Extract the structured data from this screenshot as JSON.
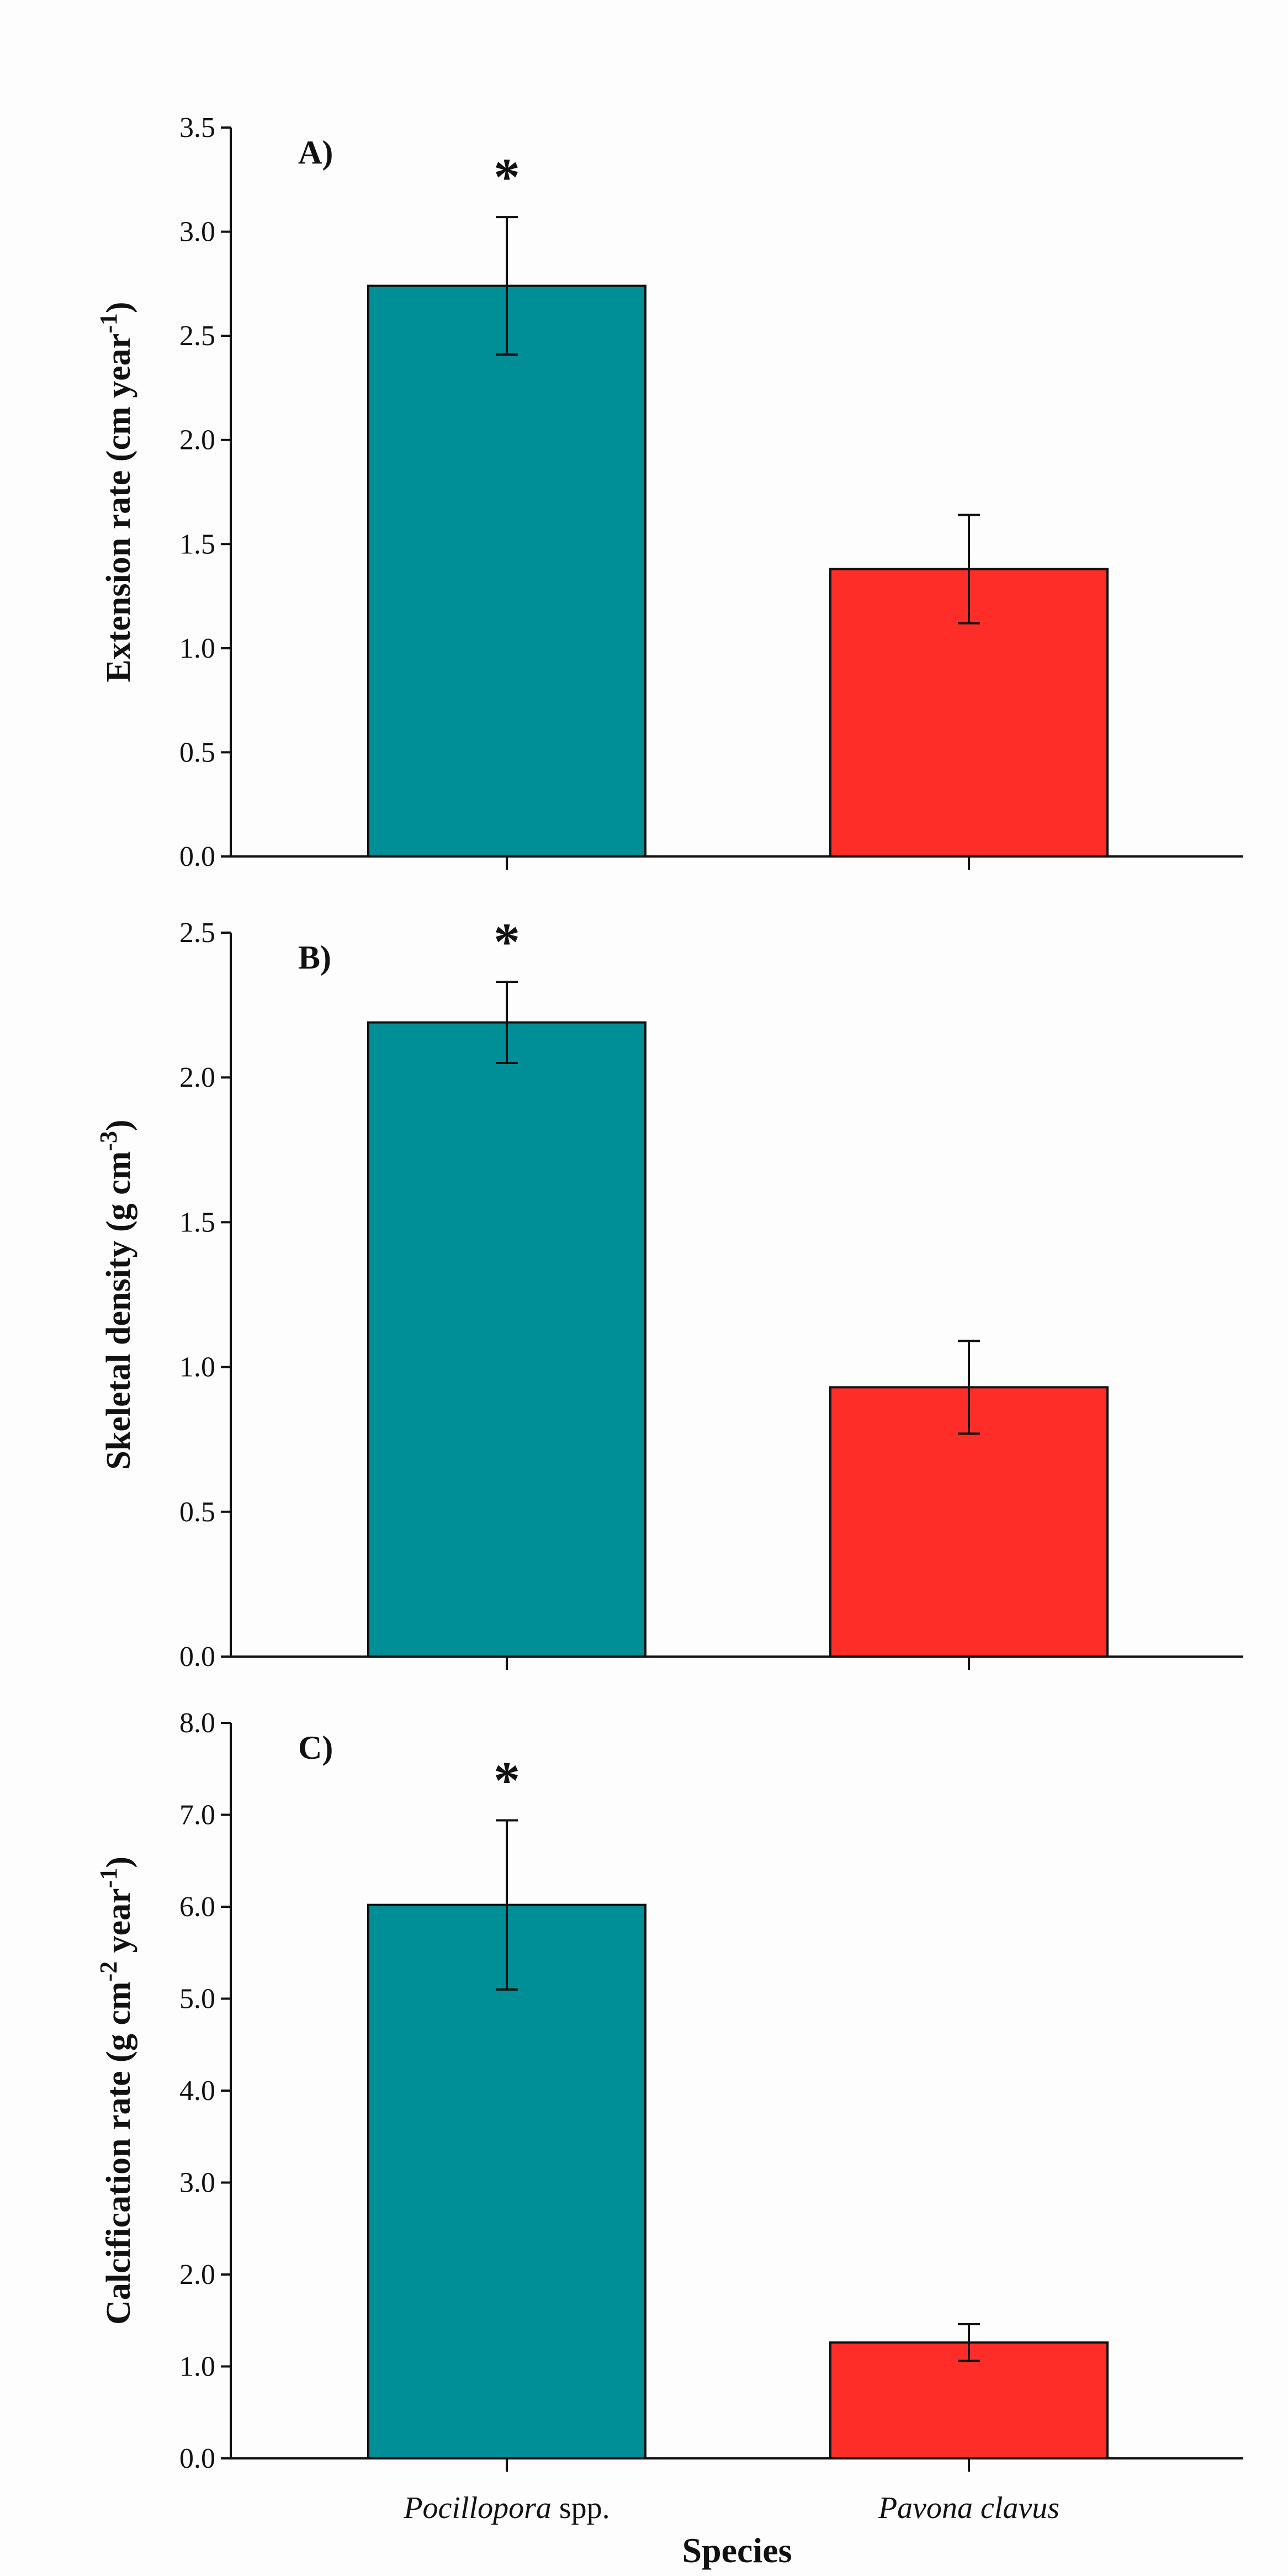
{
  "chart_data": [
    {
      "type": "bar",
      "panel_label": "A)",
      "ylabel_parts": [
        {
          "t": "Extension rate (cm year"
        },
        {
          "t": "-1",
          "sup": true
        },
        {
          "t": ")"
        }
      ],
      "ylim": [
        0,
        3.5
      ],
      "yticks": [
        "0.0",
        "0.5",
        "1.0",
        "1.5",
        "2.0",
        "2.5",
        "3.0",
        "3.5"
      ],
      "categories": [
        "Pocillopora spp.",
        "Pavona clavus"
      ],
      "values": [
        2.74,
        1.38
      ],
      "errors": [
        0.33,
        0.26
      ],
      "significance": [
        "*",
        ""
      ],
      "colors": [
        "#008f96",
        "#ff2d28"
      ]
    },
    {
      "type": "bar",
      "panel_label": "B)",
      "ylabel_parts": [
        {
          "t": "Skeletal density (g cm"
        },
        {
          "t": "-3",
          "sup": true
        },
        {
          "t": ")"
        }
      ],
      "ylim": [
        0,
        2.5
      ],
      "yticks": [
        "0.0",
        "0.5",
        "1.0",
        "1.5",
        "2.0",
        "2.5"
      ],
      "categories": [
        "Pocillopora spp.",
        "Pavona clavus"
      ],
      "values": [
        2.19,
        0.93
      ],
      "errors": [
        0.14,
        0.16
      ],
      "significance": [
        "*",
        ""
      ],
      "colors": [
        "#008f96",
        "#ff2d28"
      ]
    },
    {
      "type": "bar",
      "panel_label": "C)",
      "ylabel_parts": [
        {
          "t": "Calcification rate (g cm"
        },
        {
          "t": "-2",
          "sup": true
        },
        {
          "t": " year"
        },
        {
          "t": "-1",
          "sup": true
        },
        {
          "t": ")"
        }
      ],
      "ylim": [
        0,
        8.0
      ],
      "yticks": [
        "0.0",
        "1.0",
        "2.0",
        "3.0",
        "4.0",
        "5.0",
        "6.0",
        "7.0",
        "8.0"
      ],
      "categories": [
        "Pocillopora spp.",
        "Pavona clavus"
      ],
      "values": [
        6.02,
        1.26
      ],
      "errors": [
        0.92,
        0.2
      ],
      "significance": [
        "*",
        ""
      ],
      "colors": [
        "#008f96",
        "#ff2d28"
      ]
    }
  ],
  "x_tick_labels": [
    {
      "italic": "Pocillopora",
      "plain": " spp."
    },
    {
      "italic": "Pavona clavus",
      "plain": ""
    }
  ],
  "xlabel": "Species"
}
